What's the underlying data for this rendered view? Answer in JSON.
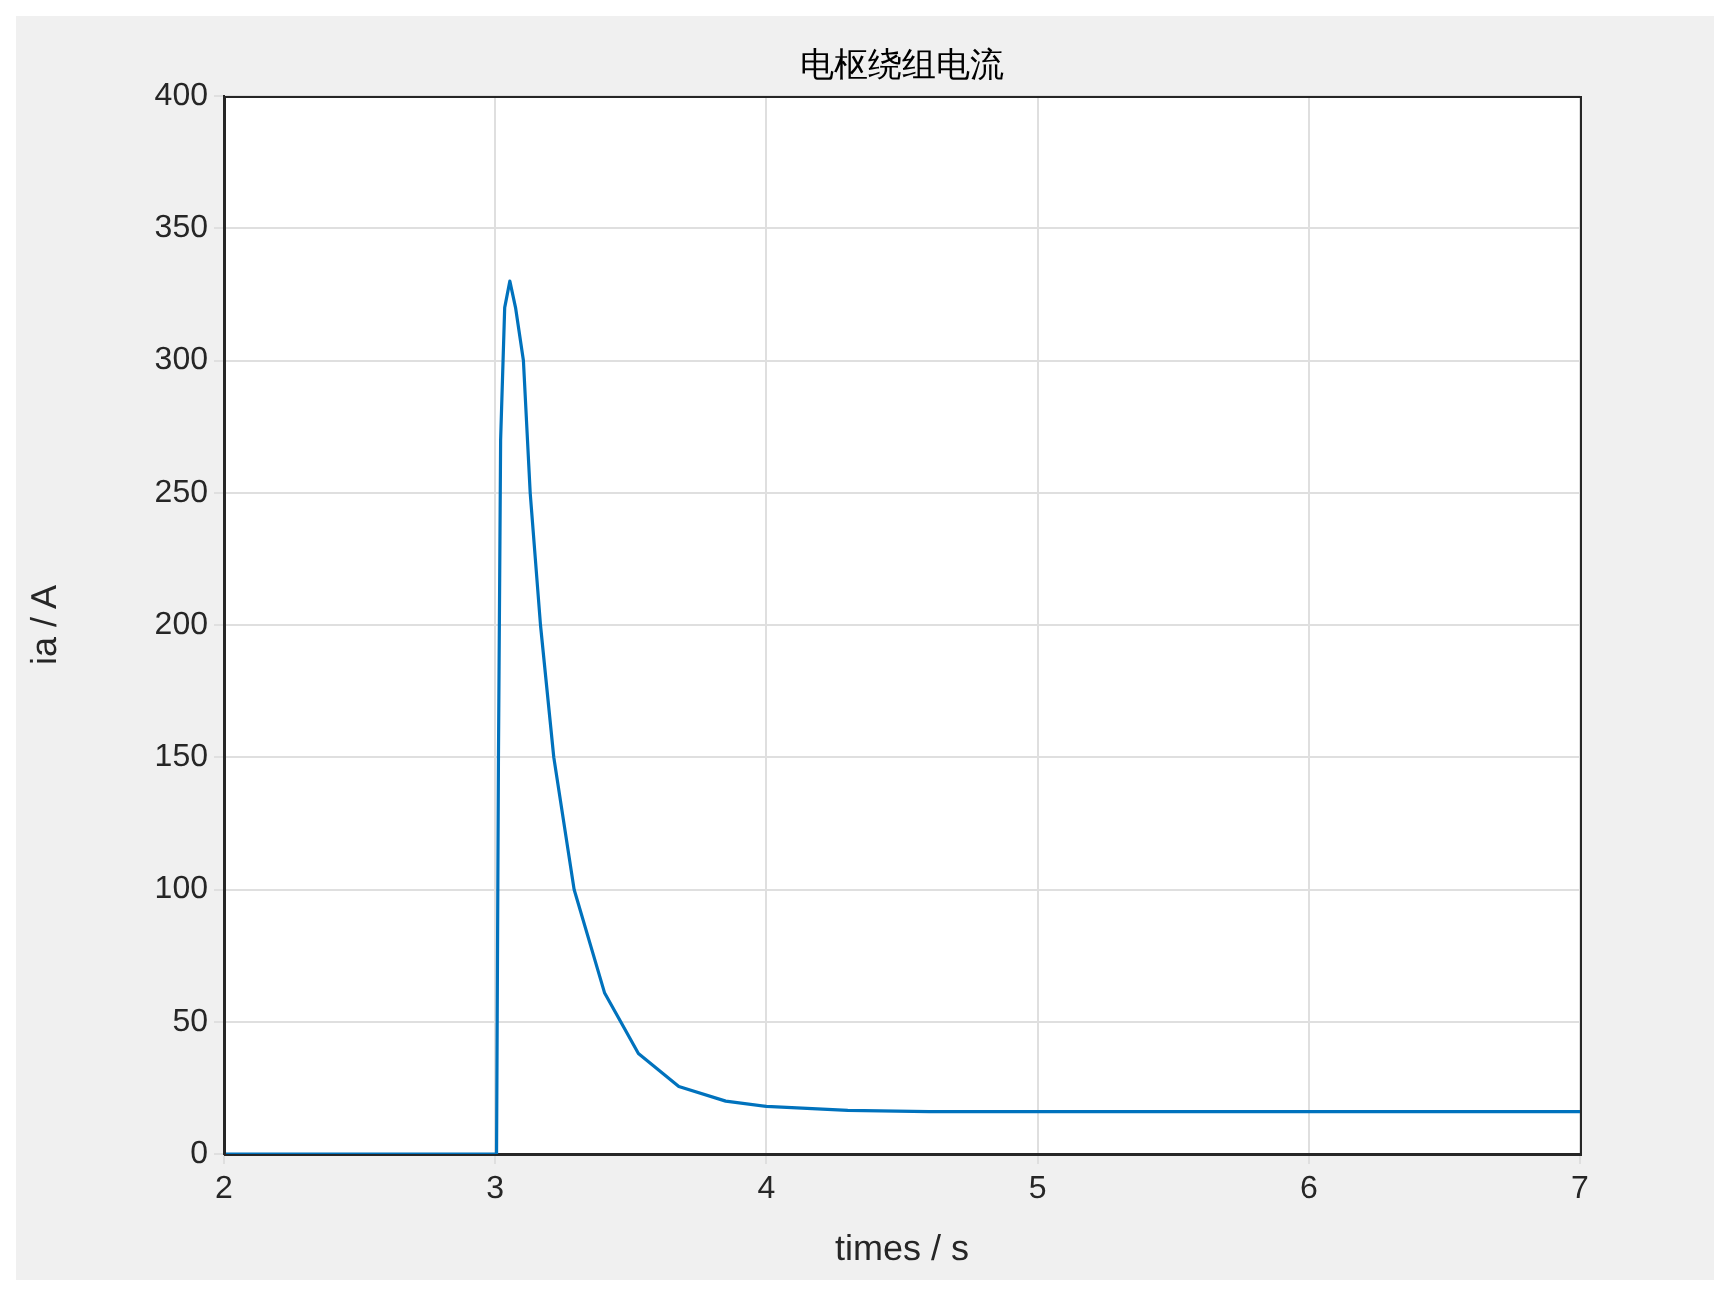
{
  "chart_data": {
    "type": "line",
    "title": "电枢绕组电流",
    "xlabel": "times / s",
    "ylabel": "ia / A",
    "x": [
      2,
      2.5,
      3.0,
      3.005,
      3.012,
      3.02,
      3.035,
      3.054,
      3.075,
      3.104,
      3.129,
      3.167,
      3.216,
      3.291,
      3.403,
      3.528,
      3.677,
      3.85,
      4.0,
      4.3,
      4.6,
      5,
      6,
      7
    ],
    "series": [
      {
        "color": "#0072bd",
        "values": [
          0,
          0,
          0,
          0,
          150,
          270,
          320,
          330,
          320,
          300,
          250,
          200,
          150,
          100,
          61,
          38,
          25.5,
          20,
          18,
          16.5,
          16,
          16,
          16,
          16
        ]
      }
    ],
    "xlim": [
      2,
      7
    ],
    "xticks": [
      2,
      3,
      4,
      5,
      6,
      7
    ],
    "ylim": [
      0,
      400
    ],
    "yticks": [
      0,
      50,
      100,
      150,
      200,
      250,
      300,
      350,
      400
    ],
    "grid": true,
    "marker": "none",
    "line_style": "solid"
  }
}
